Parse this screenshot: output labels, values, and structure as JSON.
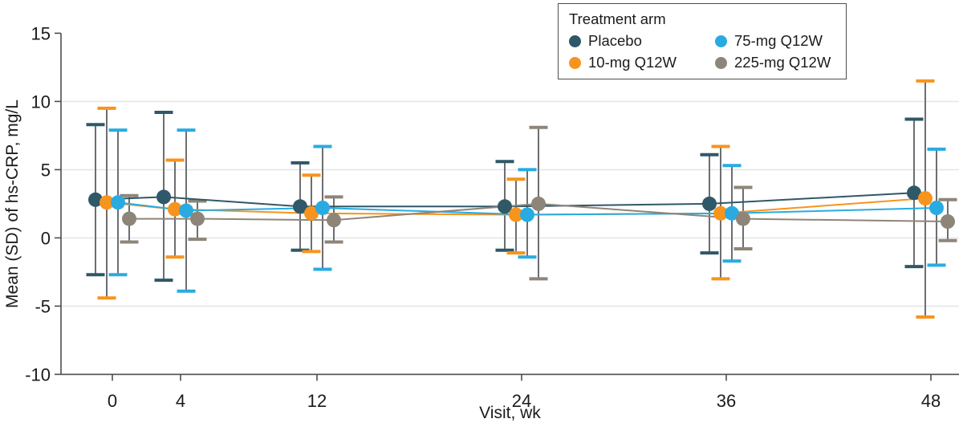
{
  "figure": {
    "legend": {
      "title": "Treatment arm",
      "items": [
        {
          "label": "Placebo",
          "color": "#2F5868"
        },
        {
          "label": "10-mg Q12W",
          "color": "#F7941D"
        },
        {
          "label": "75-mg Q12W",
          "color": "#29ABE2"
        },
        {
          "label": "225-mg Q12W",
          "color": "#8E8579"
        }
      ]
    }
  },
  "chart_data": {
    "type": "line",
    "title": "",
    "xlabel": "Visit, wk",
    "ylabel": "Mean (SD) of hs-CRP, mg/L",
    "x": [
      0,
      4,
      12,
      24,
      36,
      48
    ],
    "x_ticklabels": [
      "0",
      "4",
      "12",
      "24",
      "36",
      "48"
    ],
    "y_ticks": [
      15,
      10,
      5,
      0,
      -5,
      -10
    ],
    "y_gridlines": [
      10,
      5,
      0,
      -5
    ],
    "ylim": [
      -10,
      15
    ],
    "grid": "horizontal-only",
    "legend_position": "top-center",
    "error_bars": "mean plus-minus SD, gray stems with series-colored caps",
    "colors": {
      "stem": "#6D6E71",
      "grid": "#E6E6E6",
      "axis": "#4d4d4d",
      "text": "#1b1b1b"
    },
    "series": [
      {
        "name": "Placebo",
        "color": "#2F5868",
        "mean": [
          2.8,
          3.0,
          2.3,
          2.3,
          2.5,
          3.3
        ],
        "upper": [
          8.3,
          9.2,
          5.5,
          5.6,
          6.1,
          8.7
        ],
        "lower": [
          -2.7,
          -3.1,
          -0.9,
          -0.9,
          -1.1,
          -2.1
        ]
      },
      {
        "name": "10-mg Q12W",
        "color": "#F7941D",
        "mean": [
          2.6,
          2.1,
          1.8,
          1.7,
          1.8,
          2.9
        ],
        "upper": [
          9.5,
          5.7,
          4.6,
          4.3,
          6.7,
          11.5
        ],
        "lower": [
          -4.4,
          -1.4,
          -1.0,
          -1.1,
          -3.0,
          -5.8
        ]
      },
      {
        "name": "75-mg Q12W",
        "color": "#29ABE2",
        "mean": [
          2.6,
          2.0,
          2.2,
          1.7,
          1.8,
          2.2
        ],
        "upper": [
          7.9,
          7.9,
          6.7,
          5.0,
          5.3,
          6.5
        ],
        "lower": [
          -2.7,
          -3.9,
          -2.3,
          -1.4,
          -1.7,
          -2.0
        ]
      },
      {
        "name": "225-mg Q12W",
        "color": "#8E8579",
        "mean": [
          1.4,
          1.4,
          1.3,
          2.5,
          1.4,
          1.2
        ],
        "upper": [
          3.1,
          2.7,
          3.0,
          8.1,
          3.7,
          2.8
        ],
        "lower": [
          -0.3,
          -0.1,
          -0.3,
          -3.0,
          -0.8,
          -0.2
        ]
      }
    ]
  }
}
